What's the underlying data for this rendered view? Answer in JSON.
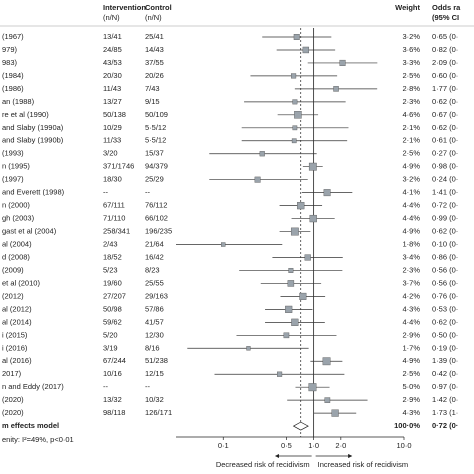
{
  "chart_data": {
    "type": "forest",
    "headers": {
      "intervention": "Intervention",
      "intervention_unit": "(n/N)",
      "control": "Control",
      "control_unit": "(n/N)",
      "weight": "Weight",
      "or": "Odds ra",
      "or_unit": "(95% CI"
    },
    "rows": [
      {
        "study": "(1967)",
        "intervention": "13/41",
        "control": "25/41",
        "weight": 3.2,
        "weight_label": "3·2%",
        "or": 0.65,
        "or_label": "0·65 (0·",
        "lo": 0.27,
        "hi": 1.57
      },
      {
        "study": "979)",
        "intervention": "24/85",
        "control": "14/43",
        "weight": 3.6,
        "weight_label": "3·6%",
        "or": 0.82,
        "or_label": "0·82 (0·",
        "lo": 0.39,
        "hi": 1.73
      },
      {
        "study": "983)",
        "intervention": "43/53",
        "control": "37/55",
        "weight": 3.3,
        "weight_label": "3·3%",
        "or": 2.09,
        "or_label": "2·09 (0·",
        "lo": 0.86,
        "hi": 5.07
      },
      {
        "study": "(1984)",
        "intervention": "20/30",
        "control": "20/26",
        "weight": 2.5,
        "weight_label": "2·5%",
        "or": 0.6,
        "or_label": "0·60 (0·",
        "lo": 0.2,
        "hi": 1.82
      },
      {
        "study": "(1986)",
        "intervention": "11/43",
        "control": "7/43",
        "weight": 2.8,
        "weight_label": "2·8%",
        "or": 1.77,
        "or_label": "1·77 (0·",
        "lo": 0.62,
        "hi": 5.05
      },
      {
        "study": "an (1988)",
        "intervention": "13/27",
        "control": "9/15",
        "weight": 2.3,
        "weight_label": "2·3%",
        "or": 0.62,
        "or_label": "0·62 (0·",
        "lo": 0.17,
        "hi": 2.26
      },
      {
        "study": "re et al (1990)",
        "intervention": "50/138",
        "control": "50/109",
        "weight": 4.6,
        "weight_label": "4·6%",
        "or": 0.67,
        "or_label": "0·67 (0·",
        "lo": 0.4,
        "hi": 1.12
      },
      {
        "study": "and Slaby (1990a)",
        "intervention": "10/29",
        "control": "5·5/12",
        "weight": 2.1,
        "weight_label": "2·1%",
        "or": 0.62,
        "or_label": "0·62 (0·",
        "lo": 0.16,
        "hi": 2.43
      },
      {
        "study": "and Slaby (1990b)",
        "intervention": "11/33",
        "control": "5·5/12",
        "weight": 2.1,
        "weight_label": "2·1%",
        "or": 0.61,
        "or_label": "0·61 (0·",
        "lo": 0.16,
        "hi": 2.35
      },
      {
        "study": "(1993)",
        "intervention": "3/20",
        "control": "15/37",
        "weight": 2.5,
        "weight_label": "2·5%",
        "or": 0.27,
        "or_label": "0·27 (0·",
        "lo": 0.07,
        "hi": 1.08
      },
      {
        "study": "n (1995)",
        "intervention": "371/1746",
        "control": "94/379",
        "weight": 4.9,
        "weight_label": "4·9%",
        "or": 0.98,
        "or_label": "0·98 (0·",
        "lo": 0.76,
        "hi": 1.26
      },
      {
        "study": "(1997)",
        "intervention": "18/30",
        "control": "25/29",
        "weight": 3.2,
        "weight_label": "3·2%",
        "or": 0.24,
        "or_label": "0·24 (0·",
        "lo": 0.07,
        "hi": 0.86
      },
      {
        "study": "and Everett (1998)",
        "intervention": "--",
        "control": "--",
        "weight": 4.1,
        "weight_label": "4·1%",
        "or": 1.41,
        "or_label": "1·41 (0·",
        "lo": 0.74,
        "hi": 2.68
      },
      {
        "study": "n (2000)",
        "intervention": "67/111",
        "control": "76/112",
        "weight": 4.4,
        "weight_label": "4·4%",
        "or": 0.72,
        "or_label": "0·72 (0·",
        "lo": 0.42,
        "hi": 1.24
      },
      {
        "study": "gh (2003)",
        "intervention": "71/110",
        "control": "66/102",
        "weight": 4.4,
        "weight_label": "4·4%",
        "or": 0.99,
        "or_label": "0·99 (0·",
        "lo": 0.57,
        "hi": 1.71
      },
      {
        "study": "gast et al (2004)",
        "intervention": "258/341",
        "control": "196/235",
        "weight": 4.9,
        "weight_label": "4·9%",
        "or": 0.62,
        "or_label": "0·62 (0·",
        "lo": 0.42,
        "hi": 0.92
      },
      {
        "study": "al (2004)",
        "intervention": "2/43",
        "control": "21/64",
        "weight": 1.8,
        "weight_label": "1·8%",
        "or": 0.1,
        "or_label": "0·10 (0·",
        "lo": 0.03,
        "hi": 0.45
      },
      {
        "study": "d (2008)",
        "intervention": "18/52",
        "control": "16/42",
        "weight": 3.4,
        "weight_label": "3·4%",
        "or": 0.86,
        "or_label": "0·86 (0·",
        "lo": 0.35,
        "hi": 2.1
      },
      {
        "study": "(2009)",
        "intervention": "5/23",
        "control": "8/23",
        "weight": 2.3,
        "weight_label": "2·3%",
        "or": 0.56,
        "or_label": "0·56 (0·",
        "lo": 0.15,
        "hi": 2.08
      },
      {
        "study": "et al (2010)",
        "intervention": "19/60",
        "control": "25/55",
        "weight": 3.7,
        "weight_label": "3·7%",
        "or": 0.56,
        "or_label": "0·56 (0·",
        "lo": 0.26,
        "hi": 1.21
      },
      {
        "study": "(2012)",
        "intervention": "27/207",
        "control": "29/163",
        "weight": 4.2,
        "weight_label": "4·2%",
        "or": 0.76,
        "or_label": "0·76 (0·",
        "lo": 0.43,
        "hi": 1.34
      },
      {
        "study": "al (2012)",
        "intervention": "50/98",
        "control": "57/86",
        "weight": 4.3,
        "weight_label": "4·3%",
        "or": 0.53,
        "or_label": "0·53 (0·",
        "lo": 0.29,
        "hi": 0.97
      },
      {
        "study": "al (2014)",
        "intervention": "59/62",
        "control": "41/57",
        "weight": 4.4,
        "weight_label": "4·4%",
        "or": 0.62,
        "or_label": "0·62 (0·",
        "lo": 0.29,
        "hi": 1.33
      },
      {
        "study": "i (2015)",
        "intervention": "5/20",
        "control": "12/30",
        "weight": 2.9,
        "weight_label": "2·9%",
        "or": 0.5,
        "or_label": "0·50 (0·",
        "lo": 0.14,
        "hi": 1.79
      },
      {
        "study": "i (2016)",
        "intervention": "3/19",
        "control": "8/16",
        "weight": 1.7,
        "weight_label": "1·7%",
        "or": 0.19,
        "or_label": "0·19 (0·",
        "lo": 0.04,
        "hi": 0.88
      },
      {
        "study": "al (2016)",
        "intervention": "67/244",
        "control": "51/238",
        "weight": 4.9,
        "weight_label": "4·9%",
        "or": 1.39,
        "or_label": "1·39 (0·",
        "lo": 0.92,
        "hi": 2.08
      },
      {
        "study": "2017)",
        "intervention": "10/16",
        "control": "12/15",
        "weight": 2.5,
        "weight_label": "2·5%",
        "or": 0.42,
        "or_label": "0·42 (0·",
        "lo": 0.08,
        "hi": 2.19
      },
      {
        "study": "n and Eddy (2017)",
        "intervention": "--",
        "control": "--",
        "weight": 5.0,
        "weight_label": "5·0%",
        "or": 0.97,
        "or_label": "0·97 (0·",
        "lo": 0.63,
        "hi": 1.5
      },
      {
        "study": "(2020)",
        "intervention": "13/32",
        "control": "10/32",
        "weight": 2.9,
        "weight_label": "2·9%",
        "or": 1.42,
        "or_label": "1·42 (0·",
        "lo": 0.51,
        "hi": 3.95
      },
      {
        "study": "(2020)",
        "intervention": "98/118",
        "control": "126/171",
        "weight": 4.3,
        "weight_label": "4·3%",
        "or": 1.73,
        "or_label": "1·73 (1·",
        "lo": 1.01,
        "hi": 2.96
      }
    ],
    "summary": {
      "study": "m effects model",
      "weight": 100,
      "weight_label": "100·0%",
      "or": 0.72,
      "or_label": "0·72 (0·",
      "lo": 0.6,
      "hi": 0.87
    },
    "heterogeneity": "enity: I²=49%, p<0·01",
    "log_x": true,
    "xlim": [
      0.03,
      10
    ],
    "xticks": [
      {
        "value": 0.1,
        "label": "0·1"
      },
      {
        "value": 0.5,
        "label": "0·5"
      },
      {
        "value": 1,
        "label": "1·0"
      },
      {
        "value": 2,
        "label": "2·0"
      },
      {
        "value": 10,
        "label": "10·0"
      }
    ],
    "reference_line": 1,
    "left_arrow": "Decreased risk of recidivism",
    "right_arrow": "Increased risk of recidivism",
    "box_color": "#9aa3ab"
  }
}
